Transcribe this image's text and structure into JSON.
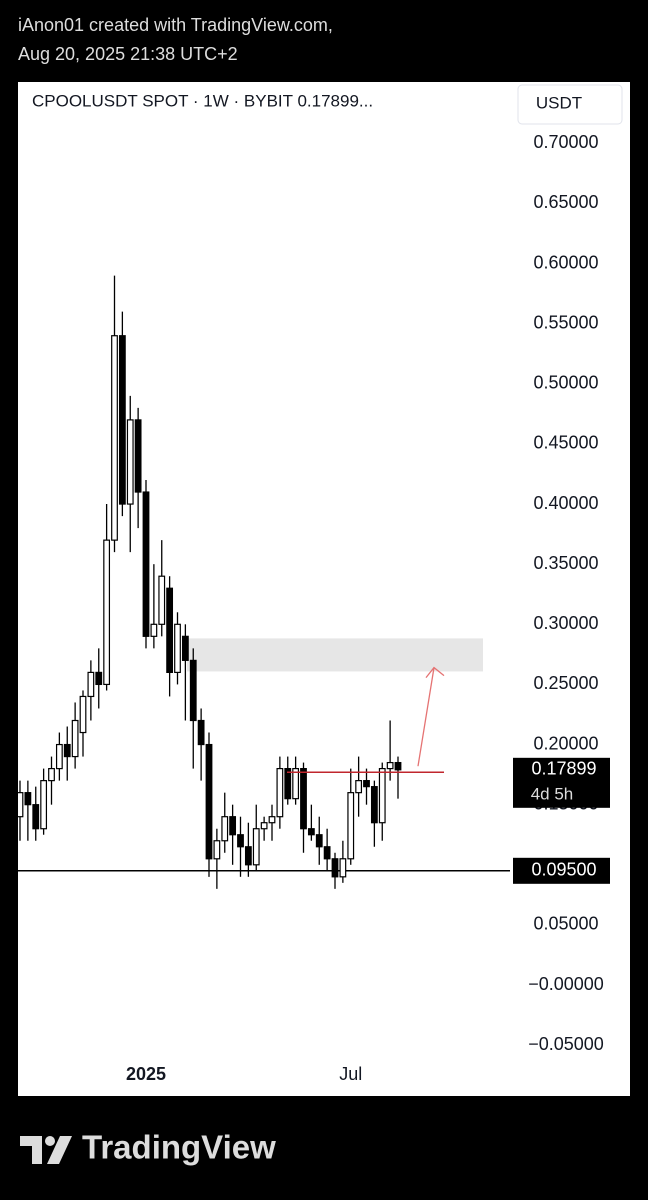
{
  "header": {
    "line1": "iAnon01 created with TradingView.com,",
    "line2": "Aug 20, 2025 21:38 UTC+2"
  },
  "footer": "TradingView",
  "chart_data": {
    "type": "candlestick",
    "title": "CPOOLUSDT SPOT · 1W · BYBIT  0.17899...",
    "currency": "USDT",
    "categories": [
      null,
      null,
      null,
      null,
      null,
      null,
      null,
      null,
      null,
      null,
      null,
      null,
      null,
      null,
      null,
      null,
      "2025",
      null,
      null,
      null,
      null,
      null,
      null,
      null,
      null,
      null,
      null,
      null,
      null,
      null,
      null,
      null,
      null,
      null,
      null,
      null,
      null,
      null,
      null,
      null,
      null,
      null,
      "Jul",
      null,
      null,
      null,
      null,
      null,
      null
    ],
    "open": [
      0.14,
      0.16,
      0.15,
      0.13,
      0.17,
      0.18,
      0.2,
      0.19,
      0.21,
      0.24,
      0.26,
      0.25,
      0.37,
      0.54,
      0.4,
      0.47,
      0.41,
      0.29,
      0.3,
      0.33,
      0.26,
      0.29,
      0.27,
      0.22,
      0.2,
      0.105,
      0.12,
      0.14,
      0.125,
      0.115,
      0.1,
      0.13,
      0.135,
      0.14,
      0.18,
      0.155,
      0.18,
      0.13,
      0.125,
      0.115,
      0.105,
      0.09,
      0.105,
      0.16,
      0.17,
      0.165,
      0.135,
      0.18,
      0.185
    ],
    "high": [
      0.17,
      0.17,
      0.165,
      0.18,
      0.19,
      0.21,
      0.215,
      0.235,
      0.245,
      0.27,
      0.28,
      0.4,
      0.59,
      0.56,
      0.49,
      0.48,
      0.42,
      0.35,
      0.37,
      0.34,
      0.31,
      0.3,
      0.28,
      0.23,
      0.21,
      0.13,
      0.16,
      0.15,
      0.14,
      0.135,
      0.15,
      0.14,
      0.15,
      0.19,
      0.19,
      0.19,
      0.185,
      0.15,
      0.14,
      0.13,
      0.11,
      0.12,
      0.18,
      0.19,
      0.18,
      0.17,
      0.185,
      0.22,
      0.19
    ],
    "low": [
      0.12,
      0.12,
      0.12,
      0.125,
      0.15,
      0.17,
      0.17,
      0.18,
      0.19,
      0.22,
      0.23,
      0.245,
      0.36,
      0.39,
      0.36,
      0.38,
      0.28,
      0.28,
      0.29,
      0.24,
      0.25,
      0.22,
      0.18,
      0.17,
      0.09,
      0.08,
      0.11,
      0.1,
      0.09,
      0.09,
      0.095,
      0.12,
      0.12,
      0.13,
      0.15,
      0.15,
      0.11,
      0.12,
      0.1,
      0.095,
      0.08,
      0.085,
      0.1,
      0.14,
      0.15,
      0.115,
      0.12,
      0.17,
      0.155
    ],
    "close": [
      0.16,
      0.15,
      0.13,
      0.17,
      0.18,
      0.2,
      0.19,
      0.22,
      0.24,
      0.26,
      0.25,
      0.37,
      0.54,
      0.4,
      0.47,
      0.41,
      0.29,
      0.3,
      0.34,
      0.26,
      0.3,
      0.27,
      0.22,
      0.2,
      0.105,
      0.12,
      0.14,
      0.125,
      0.115,
      0.1,
      0.13,
      0.135,
      0.14,
      0.18,
      0.155,
      0.18,
      0.13,
      0.125,
      0.115,
      0.105,
      0.09,
      0.105,
      0.16,
      0.17,
      0.165,
      0.135,
      0.18,
      0.185,
      0.17899
    ],
    "up_color": "#ffffff",
    "down_color": "#000000",
    "ylim": [
      -0.064,
      0.751
    ],
    "yticks": [
      {
        "value": 0.7,
        "label": "0.70000"
      },
      {
        "value": 0.65,
        "label": "0.65000"
      },
      {
        "value": 0.6,
        "label": "0.60000"
      },
      {
        "value": 0.55,
        "label": "0.55000"
      },
      {
        "value": 0.5,
        "label": "0.50000"
      },
      {
        "value": 0.45,
        "label": "0.45000"
      },
      {
        "value": 0.4,
        "label": "0.40000"
      },
      {
        "value": 0.35,
        "label": "0.35000"
      },
      {
        "value": 0.3,
        "label": "0.30000"
      },
      {
        "value": 0.25,
        "label": "0.25000"
      },
      {
        "value": 0.2,
        "label": "0.20000"
      },
      {
        "value": 0.15,
        "label": "0.15000"
      },
      {
        "value": 0.05,
        "label": "0.05000"
      },
      {
        "value": 0,
        "label": "−0.00000"
      },
      {
        "value": -0.05,
        "label": "−0.05000"
      }
    ],
    "zone": [
      0.2608,
      0.2883
    ],
    "resistance": 0.177,
    "arrow": [
      0.182,
      0.264
    ],
    "support": {
      "value": 0.095,
      "label": "0.09500"
    },
    "last_price": {
      "value": 0.17899,
      "label": "0.17899"
    },
    "countdown": "4d 5h"
  }
}
